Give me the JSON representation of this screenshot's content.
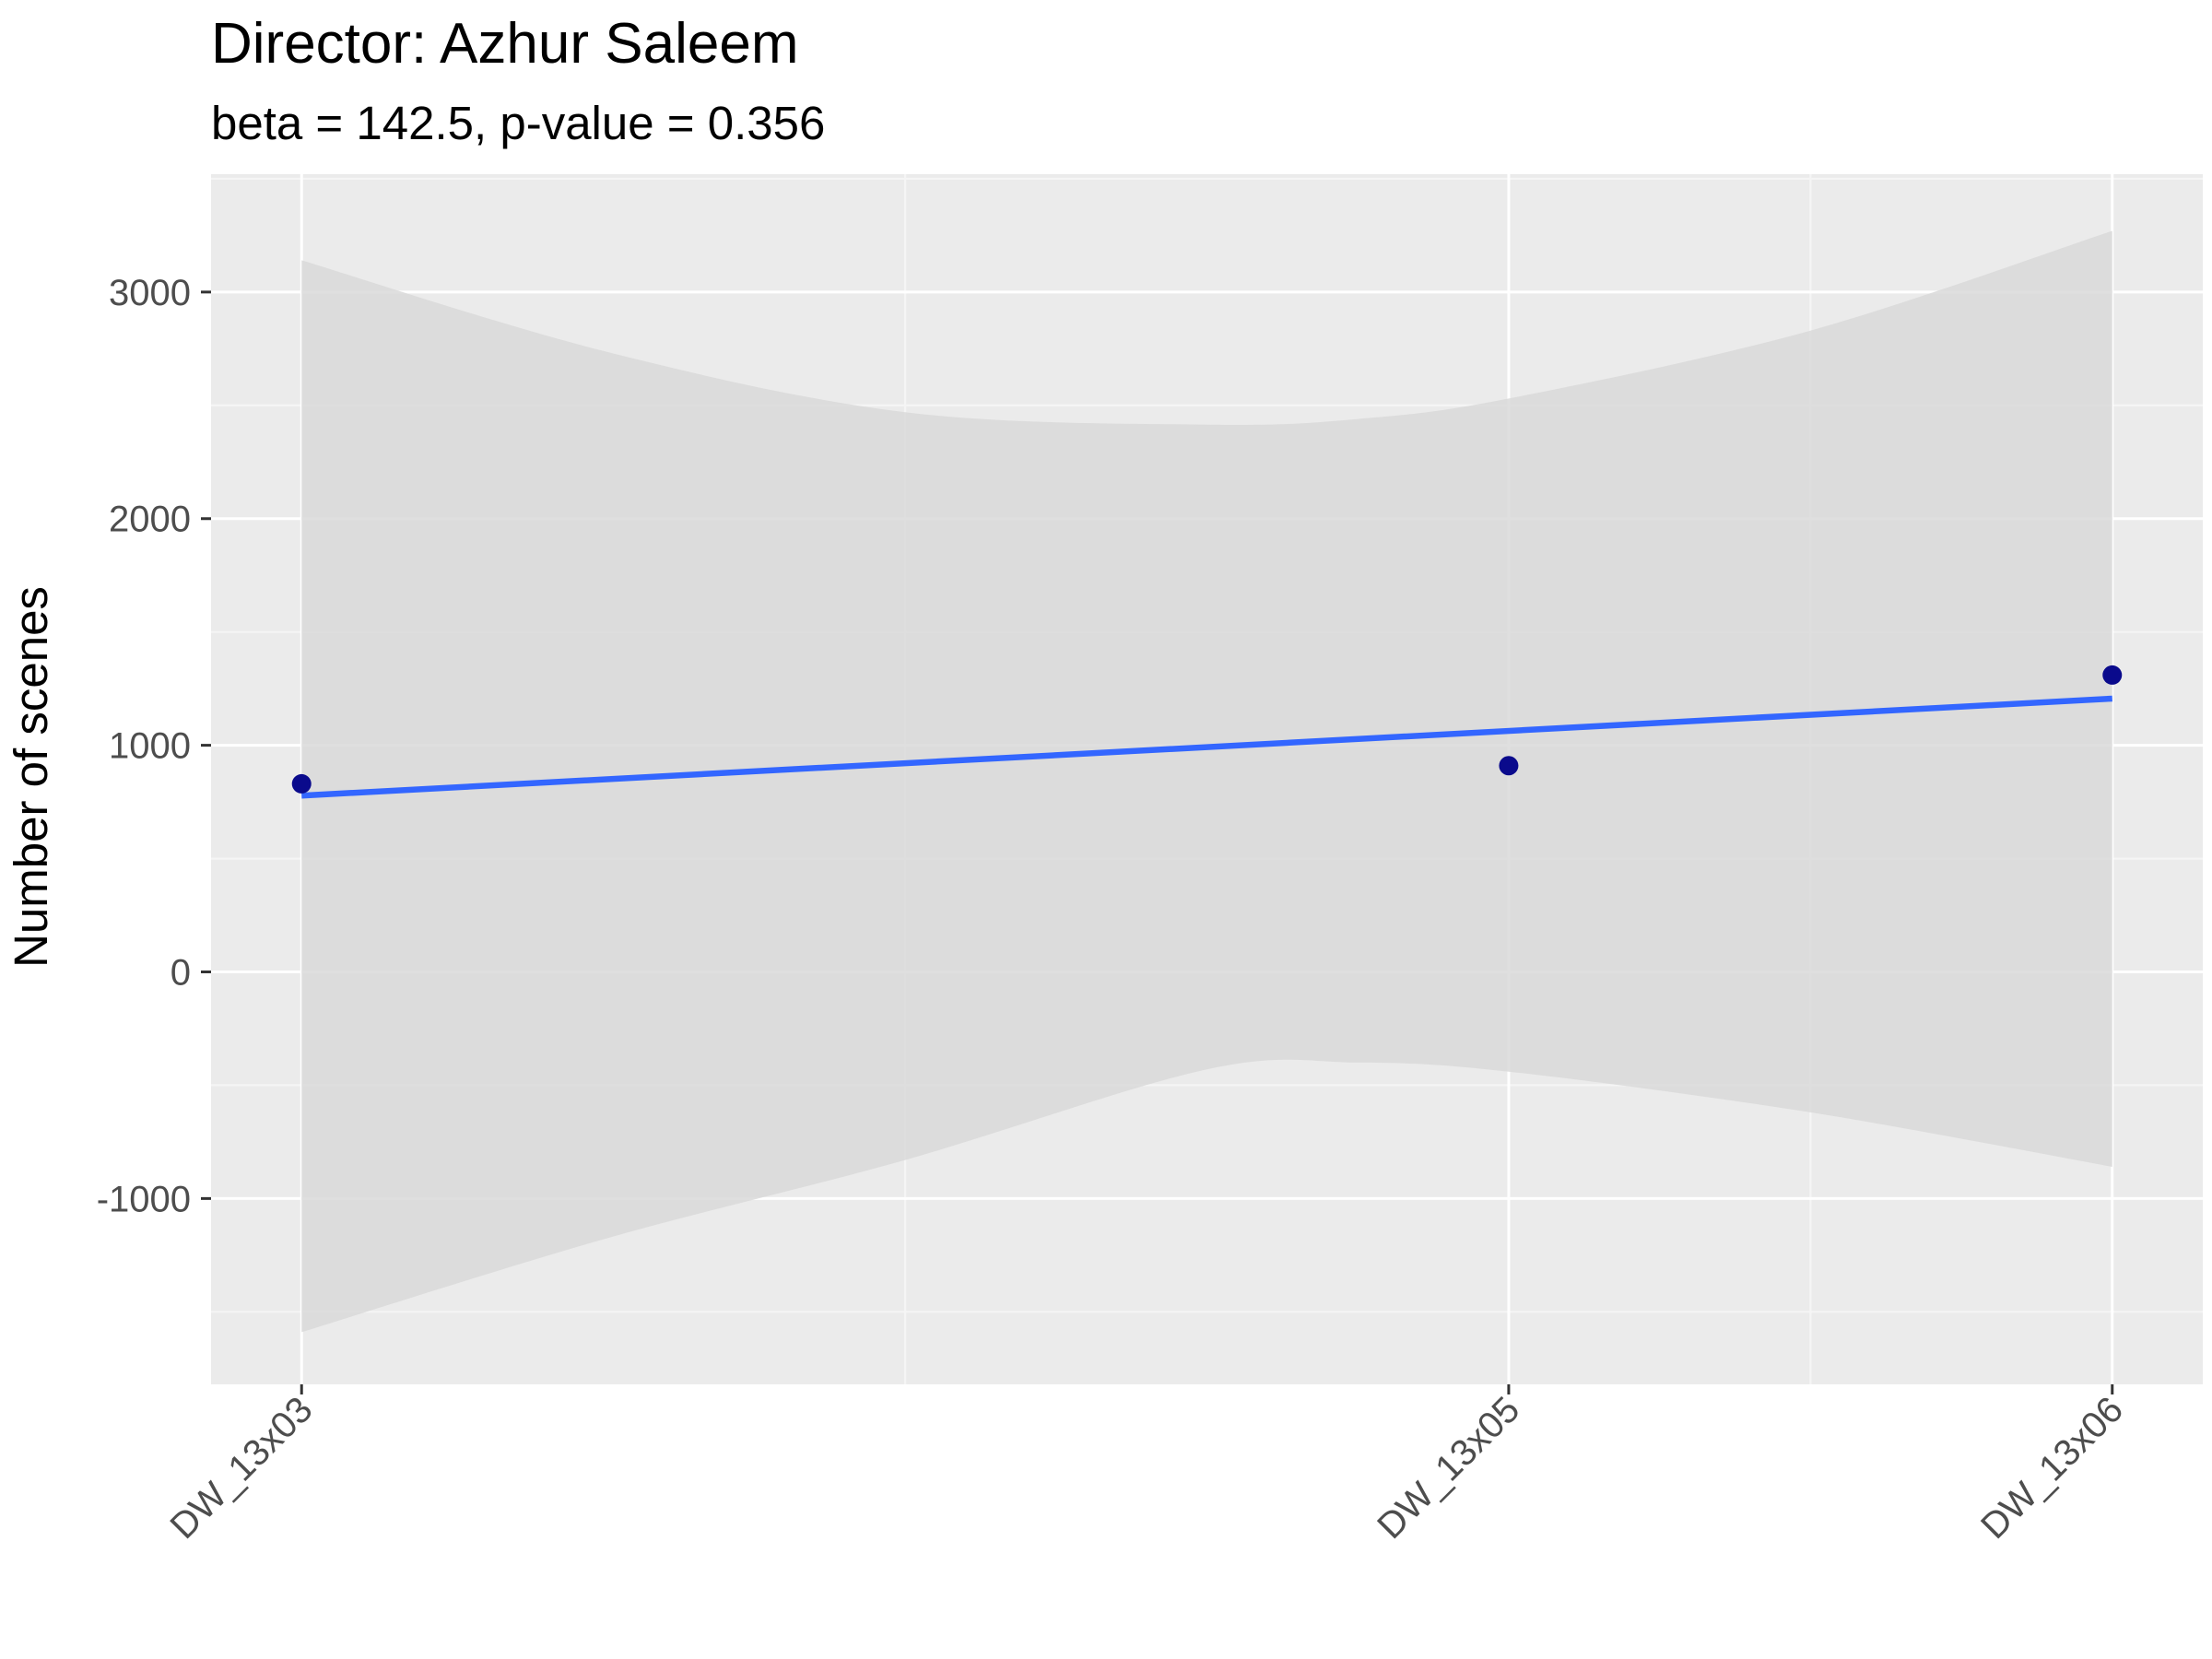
{
  "chart_data": {
    "type": "scatter",
    "title": "Director: Azhur Saleem",
    "subtitle": "beta = 142.5, p-value = 0.356",
    "xlabel": "",
    "ylabel": "Number of scenes",
    "categories": [
      "DW_13x03",
      "DW_13x05",
      "DW_13x06"
    ],
    "x_positions": [
      3,
      5,
      6
    ],
    "xlim": [
      2.85,
      6.15
    ],
    "ylim": [
      -1820,
      3520
    ],
    "y_ticks": [
      -1000,
      0,
      1000,
      2000,
      3000
    ],
    "y_tick_labels": [
      "-1000",
      "0",
      "1000",
      "2000",
      "3000"
    ],
    "points": [
      {
        "x": "DW_13x03",
        "y": 830
      },
      {
        "x": "DW_13x05",
        "y": 910
      },
      {
        "x": "DW_13x06",
        "y": 1310
      }
    ],
    "fit_line": {
      "method": "lm",
      "start": {
        "x": 3,
        "y": 778
      },
      "end": {
        "x": 6,
        "y": 1206
      }
    },
    "confidence_band": {
      "level": 0.95,
      "x": [
        3,
        3.5,
        4,
        4.5,
        4.75,
        5,
        5.5,
        6
      ],
      "upper": [
        3140,
        2740,
        2470,
        2415,
        2440,
        2530,
        2830,
        3270
      ],
      "lower": [
        -1590,
        -1180,
        -830,
        -430,
        -400,
        -440,
        -620,
        -860
      ]
    },
    "grid": true,
    "legend": "none",
    "colors": {
      "panel_background": "#ebebeb",
      "grid_major": "#ffffff",
      "grid_minor": "#f5f5f5",
      "ribbon": "#d9d9d9",
      "line": "#3366ff",
      "point": "#0a0a8c",
      "tick": "#333333",
      "tick_label": "#4d4d4d"
    }
  }
}
